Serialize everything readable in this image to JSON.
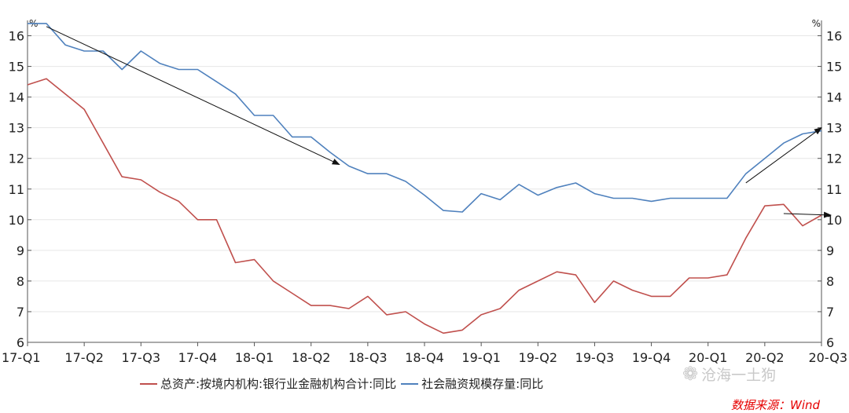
{
  "chart_data": {
    "type": "line",
    "left_axis_unit": "%",
    "right_axis_unit": "%",
    "ylim": [
      6,
      16.5
    ],
    "yticks": [
      6,
      7,
      8,
      9,
      10,
      11,
      12,
      13,
      14,
      15,
      16
    ],
    "grid": true,
    "legend_position": "bottom",
    "xtick_labels": [
      "17-Q1",
      "17-Q2",
      "17-Q3",
      "17-Q4",
      "18-Q1",
      "18-Q2",
      "18-Q3",
      "18-Q4",
      "19-Q1",
      "19-Q2",
      "19-Q3",
      "19-Q4",
      "20-Q1",
      "20-Q2",
      "20-Q3"
    ],
    "series": [
      {
        "name": "总资产:按境内机构:银行业金融机构合计:同比",
        "color": "#c0504d",
        "values": [
          14.4,
          14.6,
          14.1,
          13.6,
          12.5,
          11.4,
          11.3,
          10.9,
          10.6,
          10.0,
          10.0,
          8.6,
          8.7,
          8.0,
          7.6,
          7.2,
          7.2,
          7.1,
          7.5,
          6.9,
          7.0,
          6.6,
          6.3,
          6.4,
          6.9,
          7.1,
          7.7,
          8.0,
          8.3,
          8.2,
          7.3,
          8.0,
          7.7,
          7.5,
          7.5,
          8.1,
          8.1,
          8.2,
          9.4,
          10.45,
          10.5,
          9.8,
          10.15
        ]
      },
      {
        "name": "社会融资规模存量:同比",
        "color": "#4f81bd",
        "values": [
          16.4,
          16.4,
          15.7,
          15.5,
          15.5,
          14.9,
          15.5,
          15.1,
          14.9,
          14.9,
          14.5,
          14.1,
          13.4,
          13.4,
          12.7,
          12.7,
          12.2,
          11.75,
          11.5,
          11.5,
          11.25,
          10.8,
          10.3,
          10.25,
          10.85,
          10.65,
          11.15,
          10.8,
          11.05,
          11.2,
          10.85,
          10.7,
          10.7,
          10.6,
          10.7,
          10.7,
          10.7,
          10.7,
          11.5,
          12.0,
          12.5,
          12.8,
          12.9
        ]
      }
    ],
    "annotations": [
      {
        "type": "arrow",
        "from": {
          "x": 1,
          "y": 16.3
        },
        "to": {
          "x": 16.5,
          "y": 11.8
        }
      },
      {
        "type": "arrow",
        "from": {
          "x": 38,
          "y": 11.2
        },
        "to": {
          "x": 42,
          "y": 13.0
        }
      },
      {
        "type": "arrow",
        "from": {
          "x": 40,
          "y": 10.2
        },
        "to": {
          "x": 42.5,
          "y": 10.15
        }
      }
    ]
  },
  "watermark": {
    "icon": "wechat-icon",
    "text": "沧海一土狗"
  },
  "source_text": "数据来源：Wind"
}
